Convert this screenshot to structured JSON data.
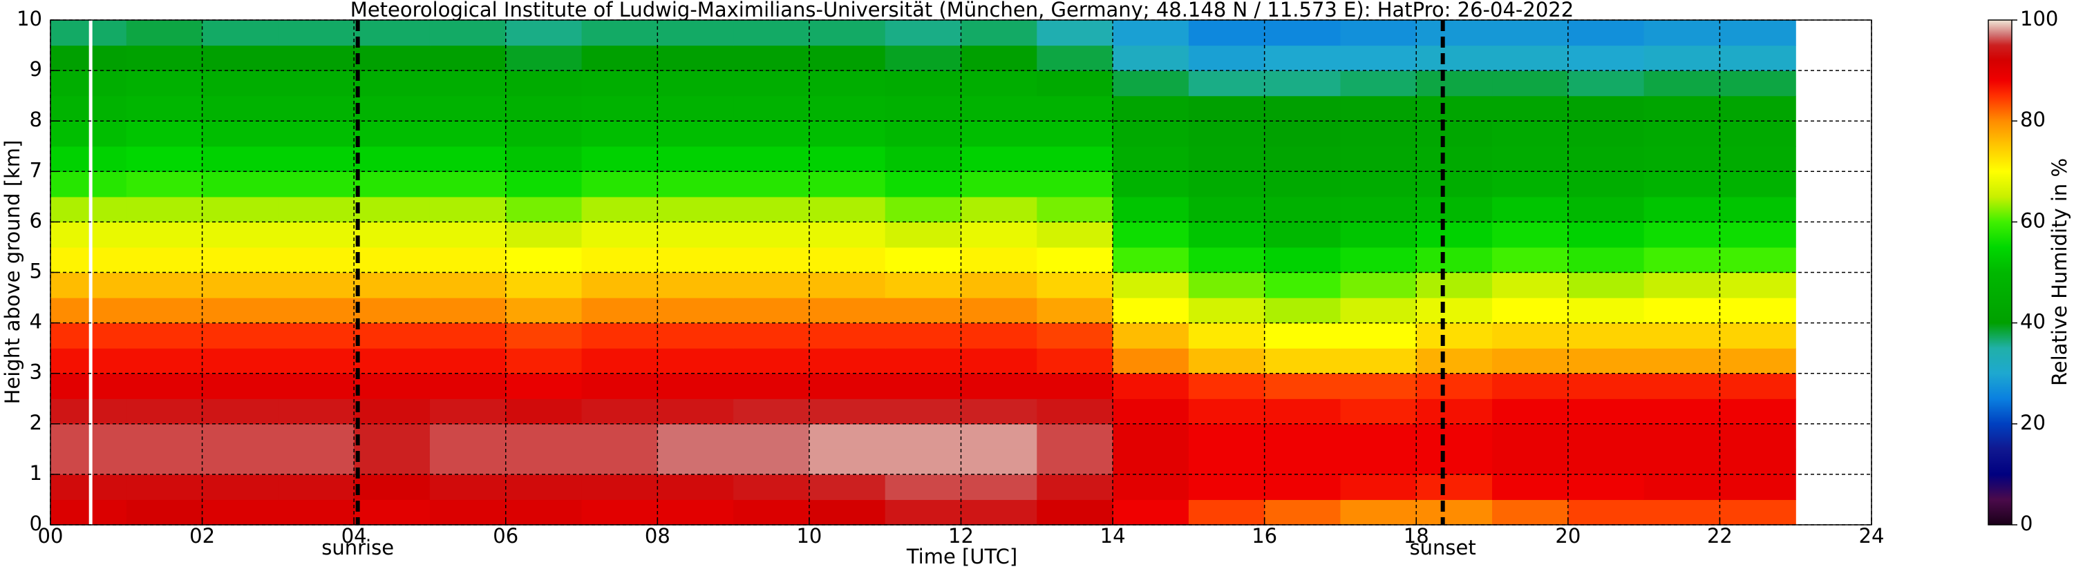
{
  "chart_data": {
    "type": "heatmap",
    "title": "Meteorological Institute of Ludwig-Maximilians-Universität (München, Germany; 48.148 N / 11.573 E):    HatPro: 26-04-2022",
    "xlabel": "Time [UTC]",
    "ylabel": "Height above ground [km]",
    "colorbar_label": "Relative Humidity in %",
    "xlim": [
      0,
      24
    ],
    "ylim": [
      0,
      10
    ],
    "xticks": [
      {
        "value": 0,
        "label": "00"
      },
      {
        "value": 2,
        "label": "02"
      },
      {
        "value": 4,
        "label": "04"
      },
      {
        "value": 6,
        "label": "06"
      },
      {
        "value": 8,
        "label": "08"
      },
      10,
      12,
      14,
      16,
      18,
      20,
      22,
      24
    ],
    "yticks": [
      0,
      1,
      2,
      3,
      4,
      5,
      6,
      7,
      8,
      9,
      10
    ],
    "grid": true,
    "clim": [
      0,
      100
    ],
    "cticks": [
      0,
      20,
      40,
      60,
      80,
      100
    ],
    "colorscale": [
      [
        0,
        "#1a0018"
      ],
      [
        5,
        "#4b0a4b"
      ],
      [
        10,
        "#000080"
      ],
      [
        15,
        "#101890"
      ],
      [
        20,
        "#0040c0"
      ],
      [
        25,
        "#0a80e0"
      ],
      [
        30,
        "#1ea8d0"
      ],
      [
        35,
        "#20b0a8"
      ],
      [
        40,
        "#00a000"
      ],
      [
        50,
        "#00b800"
      ],
      [
        55,
        "#00d800"
      ],
      [
        60,
        "#40f000"
      ],
      [
        65,
        "#c8f000"
      ],
      [
        70,
        "#ffff00"
      ],
      [
        75,
        "#ffc800"
      ],
      [
        80,
        "#ff8c00"
      ],
      [
        85,
        "#ff3000"
      ],
      [
        88,
        "#f00000"
      ],
      [
        92,
        "#d40000"
      ],
      [
        95,
        "#cc2020"
      ],
      [
        97,
        "#d07070"
      ],
      [
        100,
        "#f0e8d8"
      ]
    ],
    "x_edges": [
      0,
      1,
      2,
      3,
      4,
      5,
      6,
      7,
      8,
      9,
      10,
      11,
      12,
      13,
      14,
      15,
      16,
      17,
      18,
      19,
      20,
      21,
      22,
      23
    ],
    "y_edges": [
      0,
      0.5,
      1,
      1.5,
      2,
      2.5,
      3,
      3.5,
      4,
      4.5,
      5,
      5.5,
      6,
      6.5,
      7,
      7.5,
      8,
      8.5,
      9,
      9.5,
      10
    ],
    "z": [
      [
        91,
        92,
        91,
        91,
        90,
        91,
        91,
        90,
        90,
        91,
        92,
        94,
        94,
        92,
        88,
        84,
        82,
        80,
        80,
        82,
        84,
        84,
        84
      ],
      [
        93,
        93,
        93,
        93,
        92,
        93,
        93,
        93,
        93,
        94,
        95,
        96,
        96,
        94,
        90,
        88,
        88,
        87,
        86,
        88,
        88,
        89,
        89
      ],
      [
        96,
        96,
        96,
        96,
        95,
        96,
        96,
        96,
        97,
        97,
        98,
        98,
        98,
        96,
        90,
        88,
        88,
        88,
        88,
        89,
        89,
        89,
        89
      ],
      [
        96,
        96,
        96,
        96,
        95,
        96,
        96,
        96,
        97,
        97,
        98,
        98,
        98,
        96,
        90,
        88,
        88,
        88,
        88,
        89,
        89,
        89,
        89
      ],
      [
        94,
        94,
        94,
        94,
        93,
        94,
        93,
        94,
        94,
        95,
        95,
        95,
        95,
        94,
        89,
        87,
        87,
        86,
        87,
        88,
        88,
        88,
        88
      ],
      [
        90,
        90,
        90,
        90,
        90,
        90,
        89,
        90,
        90,
        90,
        90,
        90,
        90,
        90,
        87,
        85,
        84,
        84,
        85,
        86,
        86,
        86,
        86
      ],
      [
        87,
        87,
        87,
        87,
        87,
        87,
        86,
        87,
        87,
        87,
        87,
        87,
        87,
        86,
        80,
        76,
        74,
        74,
        77,
        78,
        78,
        78,
        78
      ],
      [
        85,
        85,
        85,
        85,
        85,
        85,
        84,
        85,
        85,
        85,
        85,
        85,
        85,
        84,
        76,
        72,
        70,
        70,
        73,
        74,
        74,
        74,
        74
      ],
      [
        80,
        80,
        80,
        80,
        80,
        80,
        78,
        80,
        80,
        80,
        80,
        80,
        80,
        78,
        70,
        66,
        64,
        66,
        68,
        70,
        69,
        70,
        70
      ],
      [
        76,
        76,
        76,
        76,
        76,
        76,
        74,
        76,
        76,
        76,
        76,
        75,
        76,
        74,
        66,
        62,
        60,
        62,
        64,
        66,
        64,
        65,
        66
      ],
      [
        71,
        71,
        71,
        71,
        71,
        71,
        70,
        71,
        71,
        71,
        71,
        70,
        71,
        70,
        60,
        56,
        54,
        56,
        58,
        60,
        58,
        60,
        60
      ],
      [
        68,
        68,
        68,
        68,
        68,
        68,
        66,
        68,
        68,
        68,
        68,
        66,
        68,
        66,
        56,
        52,
        50,
        52,
        54,
        56,
        54,
        56,
        56
      ],
      [
        64,
        64,
        64,
        64,
        64,
        64,
        62,
        64,
        64,
        64,
        64,
        62,
        64,
        62,
        52,
        48,
        47,
        48,
        50,
        52,
        50,
        52,
        52
      ],
      [
        58,
        59,
        58,
        58,
        58,
        58,
        56,
        58,
        58,
        58,
        58,
        56,
        58,
        58,
        48,
        45,
        44,
        45,
        46,
        48,
        46,
        48,
        48
      ],
      [
        54,
        55,
        54,
        54,
        54,
        54,
        52,
        54,
        54,
        54,
        54,
        52,
        54,
        54,
        46,
        43,
        42,
        43,
        44,
        45,
        44,
        45,
        45
      ],
      [
        51,
        52,
        51,
        51,
        51,
        51,
        50,
        51,
        51,
        51,
        51,
        50,
        51,
        51,
        44,
        42,
        41,
        42,
        43,
        44,
        43,
        44,
        44
      ],
      [
        48,
        49,
        48,
        48,
        48,
        48,
        47,
        48,
        48,
        48,
        48,
        47,
        48,
        48,
        42,
        40,
        40,
        41,
        42,
        42,
        41,
        42,
        42
      ],
      [
        46,
        47,
        46,
        46,
        46,
        46,
        45,
        46,
        46,
        46,
        46,
        45,
        46,
        44,
        38,
        36,
        36,
        37,
        38,
        38,
        37,
        38,
        38
      ],
      [
        40,
        41,
        40,
        40,
        40,
        40,
        39,
        40,
        40,
        40,
        40,
        39,
        40,
        38,
        32,
        29,
        30,
        30,
        31,
        31,
        30,
        31,
        31
      ],
      [
        37,
        38,
        37,
        37,
        37,
        37,
        36,
        37,
        37,
        37,
        37,
        36,
        37,
        34,
        29,
        26,
        26,
        27,
        28,
        28,
        27,
        28,
        28
      ]
    ],
    "gaps": [
      0.53
    ],
    "markers": [
      {
        "x": 4.05,
        "label": "sunrise"
      },
      {
        "x": 18.35,
        "label": "sunset"
      }
    ]
  }
}
